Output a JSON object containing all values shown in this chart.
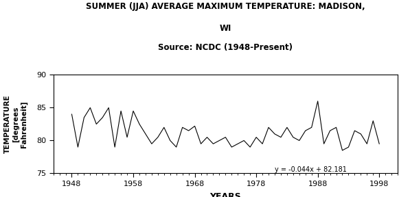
{
  "title_line1": "SUMMER (JJA) AVERAGE MAXIMUM TEMPERATURE: MADISON,",
  "title_line2": "WI",
  "title_line3": "Source: NCDC (1948-Present)",
  "xlabel": "YEARS",
  "ylabel": "TEMPERATURE\n[degrees\nFahrenheit]",
  "xlim": [
    1945,
    2001
  ],
  "ylim": [
    75,
    90
  ],
  "xticks": [
    1948,
    1958,
    1968,
    1978,
    1988,
    1998
  ],
  "yticks": [
    75,
    80,
    85,
    90
  ],
  "trend_slope": -0.044,
  "trend_intercept": 82.181,
  "trend_label": "y = -0.044x + 82.181",
  "background_color": "#ffffff",
  "line_color": "#000000",
  "trend_color": "#000000",
  "years": [
    1948,
    1949,
    1950,
    1951,
    1952,
    1953,
    1954,
    1955,
    1956,
    1957,
    1958,
    1959,
    1960,
    1961,
    1962,
    1963,
    1964,
    1965,
    1966,
    1967,
    1968,
    1969,
    1970,
    1971,
    1972,
    1973,
    1974,
    1975,
    1976,
    1977,
    1978,
    1979,
    1980,
    1981,
    1982,
    1983,
    1984,
    1985,
    1986,
    1987,
    1988,
    1989,
    1990,
    1991,
    1992,
    1993,
    1994,
    1995,
    1996,
    1997,
    1998
  ],
  "temps": [
    84.0,
    79.0,
    83.5,
    85.0,
    82.5,
    83.5,
    85.0,
    79.0,
    84.5,
    80.5,
    84.5,
    82.5,
    81.0,
    79.5,
    80.5,
    82.0,
    80.0,
    79.0,
    82.0,
    81.5,
    82.2,
    79.5,
    80.5,
    79.5,
    80.0,
    80.5,
    79.0,
    79.5,
    80.0,
    79.0,
    80.5,
    79.5,
    82.0,
    81.0,
    80.5,
    82.0,
    80.5,
    80.0,
    81.5,
    82.0,
    86.0,
    79.5,
    81.5,
    82.0,
    78.5,
    79.0,
    81.5,
    81.0,
    79.5,
    83.0,
    79.5
  ]
}
